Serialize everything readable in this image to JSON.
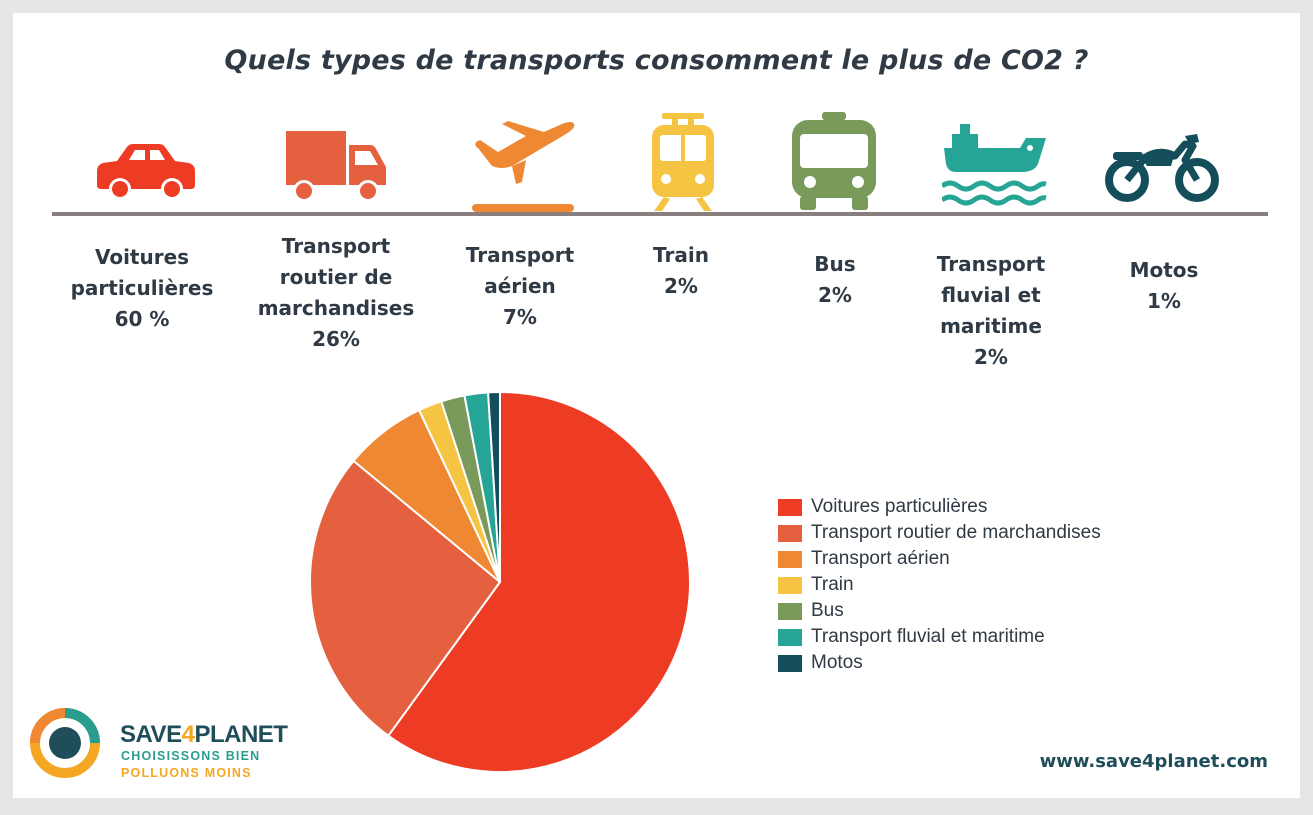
{
  "title": "Quels types de transports consomment le plus de CO2 ?",
  "colors": {
    "voitures": "#ee3b23",
    "routier": "#e5603e",
    "aerien": "#ee8833",
    "train": "#f6c443",
    "bus": "#7a9a5c",
    "fluvial": "#26a596",
    "motos": "#134e5a",
    "baseline": "#8a7f7f",
    "brand_dark": "#1f4e5a",
    "brand_orange": "#f5a623"
  },
  "categories": [
    {
      "icon": "car-icon",
      "label_lines": [
        "Voitures",
        "particulières"
      ],
      "pct": "60 %"
    },
    {
      "icon": "truck-icon",
      "label_lines": [
        "Transport",
        "routier de",
        "marchandises"
      ],
      "pct": "26%"
    },
    {
      "icon": "airplane-icon",
      "label_lines": [
        "Transport",
        "aérien"
      ],
      "pct": "7%"
    },
    {
      "icon": "train-icon",
      "label_lines": [
        "Train"
      ],
      "pct": "2%"
    },
    {
      "icon": "bus-icon",
      "label_lines": [
        "Bus"
      ],
      "pct": "2%"
    },
    {
      "icon": "ship-icon",
      "label_lines": [
        "Transport",
        "fluvial et",
        "maritime"
      ],
      "pct": "2%"
    },
    {
      "icon": "motorcycle-icon",
      "label_lines": [
        "Motos"
      ],
      "pct": "1%"
    }
  ],
  "chart_data": {
    "type": "pie",
    "categories": [
      "Voitures particulières",
      "Transport routier de marchandises",
      "Transport aérien",
      "Train",
      "Bus",
      "Transport fluvial et maritime",
      "Motos"
    ],
    "values": [
      60,
      26,
      7,
      2,
      2,
      2,
      1
    ],
    "unit": "%",
    "legend_position": "right",
    "start_angle": "12 o'clock, clockwise"
  },
  "branding": {
    "name_part1": "SAVE",
    "name_part2": "4",
    "name_part3": "PLANET",
    "tagline1": "CHOISISSONS BIEN",
    "tagline2": "POLLUONS MOINS",
    "website": "www.save4planet.com"
  }
}
